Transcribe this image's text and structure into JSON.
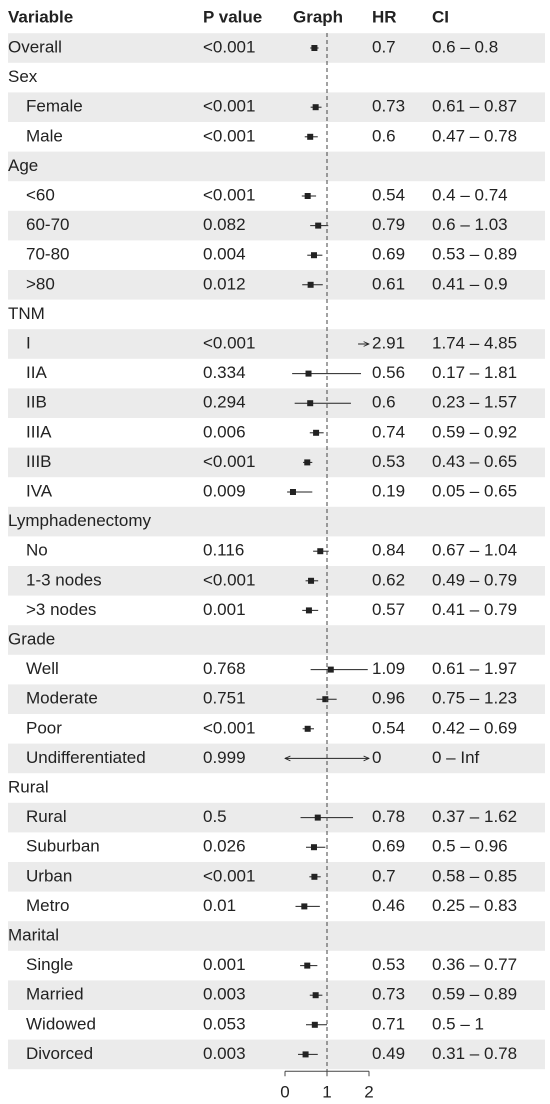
{
  "chart_data": {
    "type": "forest",
    "columns": [
      "Variable",
      "P value",
      "Graph",
      "HR",
      "CI"
    ],
    "xlim": [
      0,
      2
    ],
    "xticks": [
      0,
      1,
      2
    ],
    "ref": 1,
    "overall": {
      "label": "Overall",
      "p": "<0.001",
      "hr": 0.7,
      "ci": "0.6 – 0.8",
      "ci_low": 0.6,
      "ci_high": 0.8
    },
    "groups": [
      {
        "label": "Sex",
        "rows": [
          {
            "label": "Female",
            "p": "<0.001",
            "hr": 0.73,
            "ci": "0.61 – 0.87",
            "ci_low": 0.61,
            "ci_high": 0.87
          },
          {
            "label": "Male",
            "p": "<0.001",
            "hr": 0.6,
            "ci": "0.47 – 0.78",
            "ci_low": 0.47,
            "ci_high": 0.78
          }
        ]
      },
      {
        "label": "Age",
        "rows": [
          {
            "label": "<60",
            "p": "<0.001",
            "hr": 0.54,
            "ci": "0.4 – 0.74",
            "ci_low": 0.4,
            "ci_high": 0.74
          },
          {
            "label": "60-70",
            "p": "0.082",
            "hr": 0.79,
            "ci": "0.6 – 1.03",
            "ci_low": 0.6,
            "ci_high": 1.03
          },
          {
            "label": "70-80",
            "p": "0.004",
            "hr": 0.69,
            "ci": "0.53 – 0.89",
            "ci_low": 0.53,
            "ci_high": 0.89
          },
          {
            "label": ">80",
            "p": "0.012",
            "hr": 0.61,
            "ci": "0.41 – 0.9",
            "ci_low": 0.41,
            "ci_high": 0.9
          }
        ]
      },
      {
        "label": "TNM",
        "rows": [
          {
            "label": "I",
            "p": "<0.001",
            "hr": 2.91,
            "ci": "1.74 – 4.85",
            "ci_low": 1.74,
            "ci_high": 4.85
          },
          {
            "label": "IIA",
            "p": "0.334",
            "hr": 0.56,
            "ci": "0.17 – 1.81",
            "ci_low": 0.17,
            "ci_high": 1.81
          },
          {
            "label": "IIB",
            "p": "0.294",
            "hr": 0.6,
            "ci": "0.23 – 1.57",
            "ci_low": 0.23,
            "ci_high": 1.57
          },
          {
            "label": "IIIA",
            "p": "0.006",
            "hr": 0.74,
            "ci": "0.59 – 0.92",
            "ci_low": 0.59,
            "ci_high": 0.92
          },
          {
            "label": "IIIB",
            "p": "<0.001",
            "hr": 0.53,
            "ci": "0.43 – 0.65",
            "ci_low": 0.43,
            "ci_high": 0.65
          },
          {
            "label": "IVA",
            "p": "0.009",
            "hr": 0.19,
            "ci": "0.05 – 0.65",
            "ci_low": 0.05,
            "ci_high": 0.65
          }
        ]
      },
      {
        "label": "Lymphadenectomy",
        "rows": [
          {
            "label": "No",
            "p": "0.116",
            "hr": 0.84,
            "ci": "0.67 – 1.04",
            "ci_low": 0.67,
            "ci_high": 1.04
          },
          {
            "label": "1-3 nodes",
            "p": "<0.001",
            "hr": 0.62,
            "ci": "0.49 – 0.79",
            "ci_low": 0.49,
            "ci_high": 0.79
          },
          {
            "label": ">3 nodes",
            "p": "0.001",
            "hr": 0.57,
            "ci": "0.41 – 0.79",
            "ci_low": 0.41,
            "ci_high": 0.79
          }
        ]
      },
      {
        "label": "Grade",
        "rows": [
          {
            "label": "Well",
            "p": "0.768",
            "hr": 1.09,
            "ci": "0.61 – 1.97",
            "ci_low": 0.61,
            "ci_high": 1.97
          },
          {
            "label": "Moderate",
            "p": "0.751",
            "hr": 0.96,
            "ci": "0.75 – 1.23",
            "ci_low": 0.75,
            "ci_high": 1.23
          },
          {
            "label": "Poor",
            "p": "<0.001",
            "hr": 0.54,
            "ci": "0.42 – 0.69",
            "ci_low": 0.42,
            "ci_high": 0.69
          },
          {
            "label": "Undifferentiated",
            "p": "0.999",
            "hr": 0,
            "ci": "0 – Inf",
            "ci_low": 0,
            "ci_high": null
          }
        ]
      },
      {
        "label": "Rural",
        "rows": [
          {
            "label": "Rural",
            "p": "0.5",
            "hr": 0.78,
            "ci": "0.37 – 1.62",
            "ci_low": 0.37,
            "ci_high": 1.62
          },
          {
            "label": "Suburban",
            "p": "0.026",
            "hr": 0.69,
            "ci": "0.5 – 0.96",
            "ci_low": 0.5,
            "ci_high": 0.96
          },
          {
            "label": "Urban",
            "p": "<0.001",
            "hr": 0.7,
            "ci": "0.58 – 0.85",
            "ci_low": 0.58,
            "ci_high": 0.85
          },
          {
            "label": "Metro",
            "p": "0.01",
            "hr": 0.46,
            "ci": "0.25 – 0.83",
            "ci_low": 0.25,
            "ci_high": 0.83
          }
        ]
      },
      {
        "label": "Marital",
        "rows": [
          {
            "label": "Single",
            "p": "0.001",
            "hr": 0.53,
            "ci": "0.36 – 0.77",
            "ci_low": 0.36,
            "ci_high": 0.77
          },
          {
            "label": "Married",
            "p": "0.003",
            "hr": 0.73,
            "ci": "0.59 – 0.89",
            "ci_low": 0.59,
            "ci_high": 0.89
          },
          {
            "label": "Widowed",
            "p": "0.053",
            "hr": 0.71,
            "ci": "0.5 – 1",
            "ci_low": 0.5,
            "ci_high": 1
          },
          {
            "label": "Divorced",
            "p": "0.003",
            "hr": 0.49,
            "ci": "0.31 – 0.78",
            "ci_low": 0.31,
            "ci_high": 0.78
          }
        ]
      }
    ]
  }
}
